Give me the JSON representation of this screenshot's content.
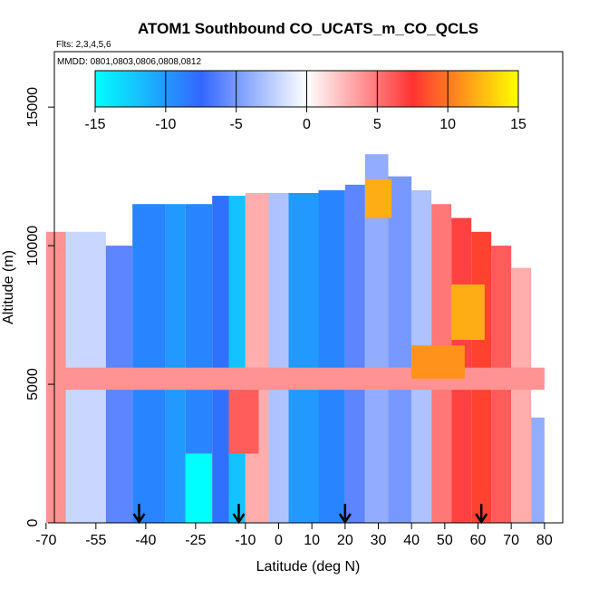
{
  "chart_data": {
    "type": "heatmap",
    "title": "ATOM1 Southbound CO_UCATS_m_CO_QCLS",
    "flights_label": "Flts: 2,3,4,5,6",
    "dates_label": "MMDD: 0801,0803,0806,0808,0812",
    "xlabel": "Latitude (deg N)",
    "ylabel": "Altitude (m)",
    "xlim": [
      -70,
      80
    ],
    "ylim": [
      0,
      17000
    ],
    "x_ticks": [
      -70,
      -55,
      -40,
      -25,
      -10,
      0,
      10,
      20,
      30,
      40,
      50,
      60,
      70,
      80
    ],
    "y_ticks": [
      0,
      5000,
      10000,
      15000
    ],
    "colorbar": {
      "range": [
        -15,
        15
      ],
      "ticks": [
        -15,
        -10,
        -5,
        0,
        5,
        10,
        15
      ],
      "colors": [
        "#00ffff",
        "#3366ff",
        "#ffffff",
        "#ff3333",
        "#ffff00"
      ]
    },
    "arrows_lat": [
      -42,
      -12,
      20,
      61
    ],
    "regions": [
      {
        "lat": [
          -70,
          -64
        ],
        "alt": [
          0,
          10500
        ],
        "v": 4
      },
      {
        "lat": [
          -64,
          -52
        ],
        "alt": [
          0,
          10500
        ],
        "v": -2
      },
      {
        "lat": [
          -52,
          -44
        ],
        "alt": [
          0,
          10000
        ],
        "v": -6
      },
      {
        "lat": [
          -44,
          -34
        ],
        "alt": [
          0,
          11500
        ],
        "v": -9
      },
      {
        "lat": [
          -34,
          -28
        ],
        "alt": [
          0,
          11500
        ],
        "v": -10
      },
      {
        "lat": [
          -28,
          -20
        ],
        "alt": [
          0,
          2500
        ],
        "v": -15
      },
      {
        "lat": [
          -28,
          -20
        ],
        "alt": [
          2500,
          11500
        ],
        "v": -9
      },
      {
        "lat": [
          -20,
          -15
        ],
        "alt": [
          0,
          11800
        ],
        "v": -8
      },
      {
        "lat": [
          -15,
          -10
        ],
        "alt": [
          0,
          11800
        ],
        "v": -12
      },
      {
        "lat": [
          -10,
          -3
        ],
        "alt": [
          0,
          11900
        ],
        "v": 3
      },
      {
        "lat": [
          -3,
          3
        ],
        "alt": [
          0,
          11900
        ],
        "v": -3
      },
      {
        "lat": [
          3,
          12
        ],
        "alt": [
          0,
          11900
        ],
        "v": -10
      },
      {
        "lat": [
          12,
          20
        ],
        "alt": [
          0,
          12000
        ],
        "v": -9
      },
      {
        "lat": [
          20,
          26
        ],
        "alt": [
          0,
          12200
        ],
        "v": -6
      },
      {
        "lat": [
          26,
          33
        ],
        "alt": [
          0,
          13300
        ],
        "v": -4
      },
      {
        "lat": [
          33,
          40
        ],
        "alt": [
          0,
          12500
        ],
        "v": -5
      },
      {
        "lat": [
          40,
          46
        ],
        "alt": [
          0,
          12000
        ],
        "v": -3
      },
      {
        "lat": [
          46,
          52
        ],
        "alt": [
          0,
          11500
        ],
        "v": 5
      },
      {
        "lat": [
          52,
          58
        ],
        "alt": [
          0,
          11000
        ],
        "v": 7
      },
      {
        "lat": [
          58,
          64
        ],
        "alt": [
          0,
          10500
        ],
        "v": 8
      },
      {
        "lat": [
          64,
          70
        ],
        "alt": [
          0,
          10000
        ],
        "v": 6
      },
      {
        "lat": [
          70,
          76
        ],
        "alt": [
          0,
          9200
        ],
        "v": 3
      },
      {
        "lat": [
          76,
          80
        ],
        "alt": [
          0,
          3800
        ],
        "v": -4
      },
      {
        "lat": [
          -70,
          80
        ],
        "alt": [
          4800,
          5600
        ],
        "v": 4
      },
      {
        "lat": [
          40,
          56
        ],
        "alt": [
          5200,
          6400
        ],
        "v": 11
      },
      {
        "lat": [
          52,
          62
        ],
        "alt": [
          6600,
          8600
        ],
        "v": 12
      },
      {
        "lat": [
          26,
          34
        ],
        "alt": [
          11000,
          12400
        ],
        "v": 12
      },
      {
        "lat": [
          -15,
          -6
        ],
        "alt": [
          2500,
          4800
        ],
        "v": 6
      }
    ]
  }
}
